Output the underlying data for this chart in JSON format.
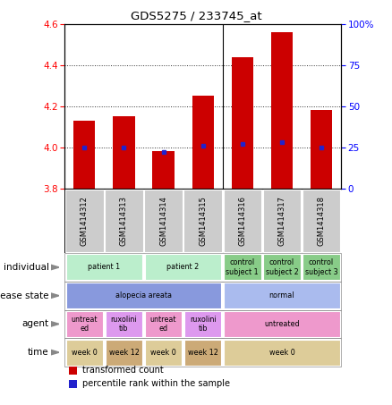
{
  "title": "GDS5275 / 233745_at",
  "samples": [
    "GSM1414312",
    "GSM1414313",
    "GSM1414314",
    "GSM1414315",
    "GSM1414316",
    "GSM1414317",
    "GSM1414318"
  ],
  "transformed_count": [
    4.13,
    4.15,
    3.98,
    4.25,
    4.44,
    4.56,
    4.18
  ],
  "percentile_rank": [
    25,
    25,
    22,
    26,
    27,
    28,
    25
  ],
  "ylim_left": [
    3.8,
    4.6
  ],
  "ylim_right": [
    0,
    100
  ],
  "yticks_left": [
    3.8,
    4.0,
    4.2,
    4.4,
    4.6
  ],
  "yticks_right": [
    0,
    25,
    50,
    75,
    100
  ],
  "bar_color": "#cc0000",
  "dot_color": "#2222cc",
  "bar_bottom": 3.8,
  "annotation_rows": [
    {
      "label": "individual",
      "cells": [
        {
          "text": "patient 1",
          "span": 2,
          "color": "#bbeecc"
        },
        {
          "text": "patient 2",
          "span": 2,
          "color": "#bbeecc"
        },
        {
          "text": "control\nsubject 1",
          "span": 1,
          "color": "#88cc88"
        },
        {
          "text": "control\nsubject 2",
          "span": 1,
          "color": "#88cc88"
        },
        {
          "text": "control\nsubject 3",
          "span": 1,
          "color": "#88cc88"
        }
      ]
    },
    {
      "label": "disease state",
      "cells": [
        {
          "text": "alopecia areata",
          "span": 4,
          "color": "#8899dd"
        },
        {
          "text": "normal",
          "span": 3,
          "color": "#aabbee"
        }
      ]
    },
    {
      "label": "agent",
      "cells": [
        {
          "text": "untreat\ned",
          "span": 1,
          "color": "#ee99cc"
        },
        {
          "text": "ruxolini\ntib",
          "span": 1,
          "color": "#dd99ee"
        },
        {
          "text": "untreat\ned",
          "span": 1,
          "color": "#ee99cc"
        },
        {
          "text": "ruxolini\ntib",
          "span": 1,
          "color": "#dd99ee"
        },
        {
          "text": "untreated",
          "span": 3,
          "color": "#ee99cc"
        }
      ]
    },
    {
      "label": "time",
      "cells": [
        {
          "text": "week 0",
          "span": 1,
          "color": "#ddcc99"
        },
        {
          "text": "week 12",
          "span": 1,
          "color": "#ccaa77"
        },
        {
          "text": "week 0",
          "span": 1,
          "color": "#ddcc99"
        },
        {
          "text": "week 12",
          "span": 1,
          "color": "#ccaa77"
        },
        {
          "text": "week 0",
          "span": 3,
          "color": "#ddcc99"
        }
      ]
    }
  ],
  "legend_items": [
    {
      "color": "#cc0000",
      "label": "transformed count"
    },
    {
      "color": "#2222cc",
      "label": "percentile rank within the sample"
    }
  ],
  "fig_width": 4.38,
  "fig_height": 4.53,
  "dpi": 100
}
